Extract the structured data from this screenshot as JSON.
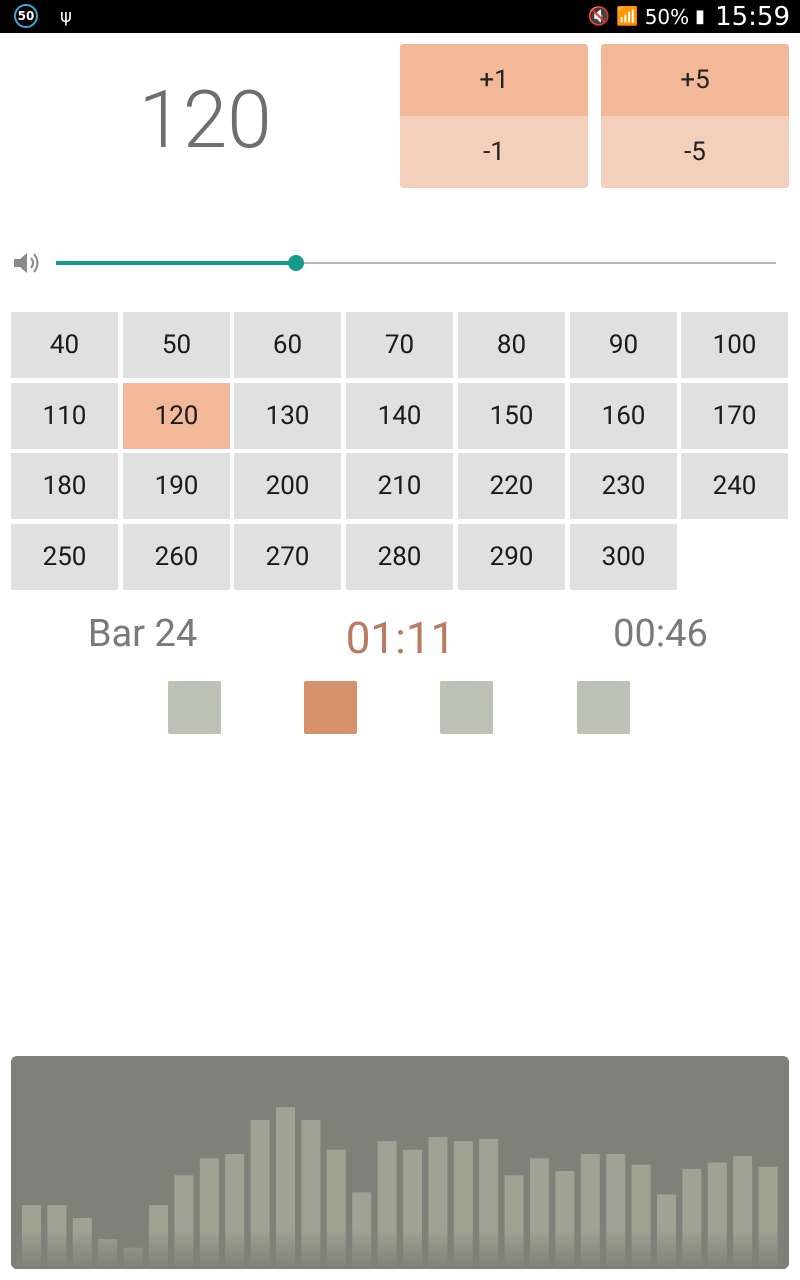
{
  "status_bar": {
    "badge": "50",
    "battery_percent": "50%",
    "time": "15:59",
    "icons": [
      "usb-icon",
      "mute-icon",
      "wifi-icon",
      "battery-icon"
    ]
  },
  "tempo": {
    "bpm": "120",
    "plus1": "+1",
    "plus5": "+5",
    "minus1": "-1",
    "minus5": "-5"
  },
  "volume": {
    "level_fraction": 0.333,
    "accent": "#129a8a"
  },
  "presets": [
    "40",
    "50",
    "60",
    "70",
    "80",
    "90",
    "100",
    "110",
    "120",
    "130",
    "140",
    "150",
    "160",
    "170",
    "180",
    "190",
    "200",
    "210",
    "220",
    "230",
    "240",
    "250",
    "260",
    "270",
    "280",
    "290",
    "300"
  ],
  "selected_preset": "120",
  "info": {
    "bar": "Bar 24",
    "elapsed": "01:11",
    "remaining": "00:46"
  },
  "beats": {
    "count": 4,
    "active_index": 1
  },
  "visualizer": {
    "levels": [
      0.3,
      0.3,
      0.24,
      0.14,
      0.1,
      0.3,
      0.44,
      0.52,
      0.54,
      0.7,
      0.76,
      0.7,
      0.56,
      0.36,
      0.6,
      0.56,
      0.62,
      0.6,
      0.61,
      0.44,
      0.52,
      0.46,
      0.54,
      0.54,
      0.49,
      0.35,
      0.47,
      0.5,
      0.53,
      0.48
    ]
  }
}
